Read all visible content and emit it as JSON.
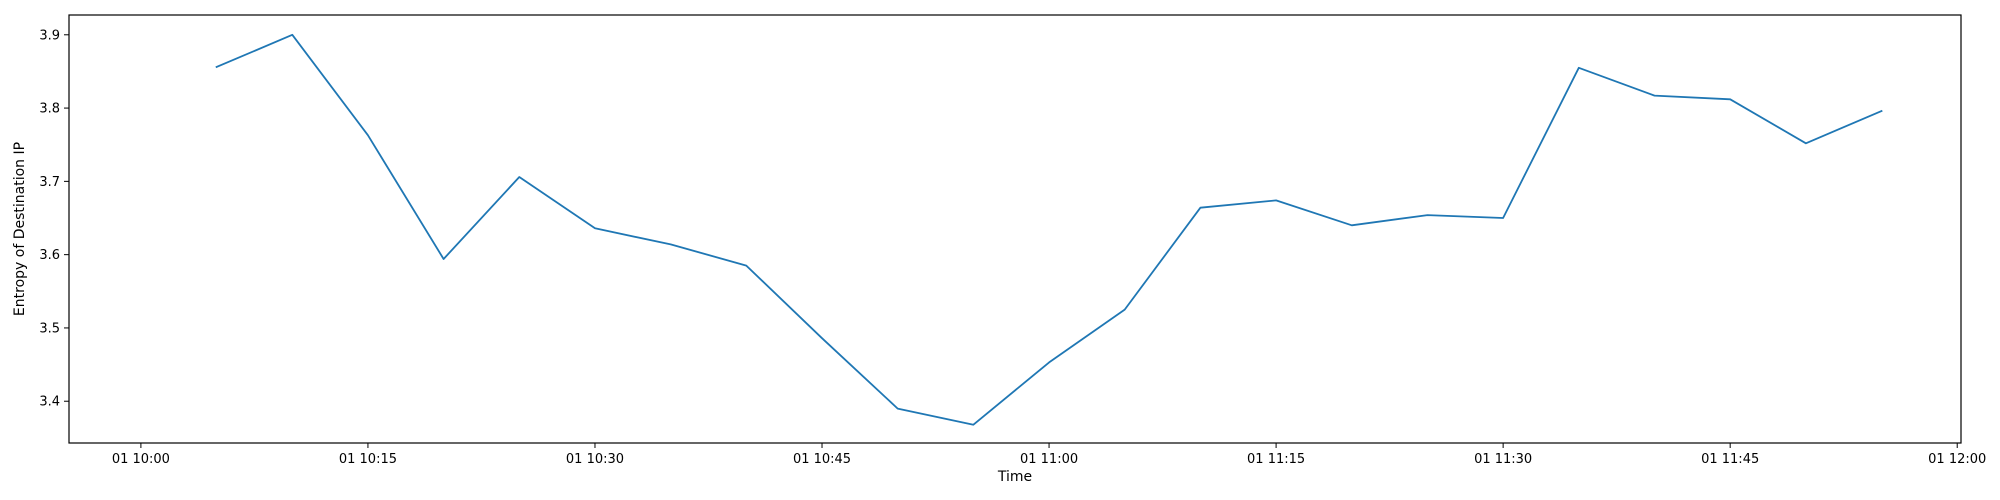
{
  "chart_data": {
    "type": "line",
    "title": "",
    "xlabel": "Time",
    "ylabel": "Entropy of Destination IP",
    "x_tick_labels": [
      "01 10:00",
      "01 10:15",
      "01 10:30",
      "01 10:45",
      "01 11:00",
      "01 11:15",
      "01 11:30",
      "01 11:45",
      "01 12:00"
    ],
    "x_tick_minutes": [
      0,
      15,
      30,
      45,
      60,
      75,
      90,
      105,
      120
    ],
    "y_ticks": [
      3.4,
      3.5,
      3.6,
      3.7,
      3.8,
      3.9
    ],
    "y_tick_labels": [
      "3.4",
      "3.5",
      "3.6",
      "3.7",
      "3.8",
      "3.9"
    ],
    "xlim_minutes": [
      -4.75,
      120.25
    ],
    "ylim": [
      3.343,
      3.927
    ],
    "grid": false,
    "series": [
      {
        "name": "Entropy of Destination IP",
        "color": "#1f77b4",
        "x_minutes": [
          5,
          10,
          15,
          20,
          25,
          30,
          35,
          40,
          45,
          50,
          55,
          60,
          65,
          70,
          75,
          80,
          85,
          90,
          95,
          100,
          105,
          110,
          115
        ],
        "values": [
          3.856,
          3.9,
          3.763,
          3.594,
          3.706,
          3.636,
          3.614,
          3.585,
          3.486,
          3.39,
          3.368,
          3.453,
          3.525,
          3.664,
          3.674,
          3.64,
          3.654,
          3.65,
          3.855,
          3.817,
          3.812,
          3.752,
          3.796
        ]
      }
    ]
  }
}
